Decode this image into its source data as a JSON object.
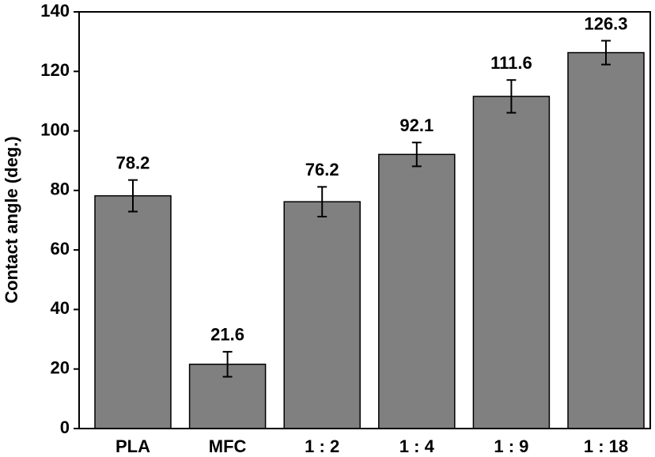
{
  "chart_data": {
    "type": "bar",
    "y_label": "Contact angle (deg.)",
    "categories": [
      "PLA",
      "MFC",
      "1 : 2",
      "1 : 4",
      "1 : 9",
      "1 : 18"
    ],
    "values": [
      78.2,
      21.6,
      76.2,
      92.1,
      111.6,
      126.3
    ],
    "errors": [
      5.3,
      4.2,
      5.0,
      4.0,
      5.5,
      4.0
    ],
    "color": "#808080",
    "ylim": [
      0,
      140
    ],
    "yticks": [
      0,
      20,
      40,
      60,
      80,
      100,
      120,
      140
    ],
    "grid": false
  }
}
